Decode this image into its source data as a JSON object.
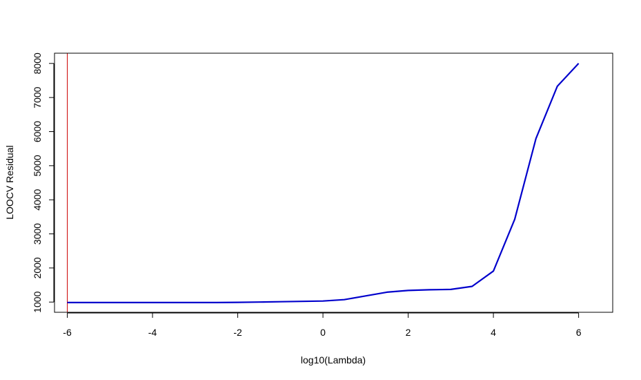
{
  "chart_data": {
    "type": "line",
    "title": "",
    "xlabel": "log10(Lambda)",
    "ylabel": "LOOCV Residual",
    "xlim": [
      -6.3,
      6.8
    ],
    "ylim": [
      700,
      8300
    ],
    "xticks": [
      -6,
      -4,
      -2,
      0,
      2,
      4,
      6
    ],
    "xtick_labels": [
      "-6",
      "-4",
      "-2",
      "0",
      "2",
      "4",
      "6"
    ],
    "yticks": [
      1000,
      2000,
      3000,
      4000,
      5000,
      6000,
      7000,
      8000
    ],
    "ytick_labels": [
      "1000",
      "2000",
      "3000",
      "4000",
      "5000",
      "6000",
      "7000",
      "8000"
    ],
    "grid": false,
    "series": [
      {
        "color": "#0000cc",
        "x": [
          -6,
          -5.5,
          -5,
          -4.5,
          -4,
          -3.5,
          -3,
          -2.5,
          -2,
          -1.5,
          -1,
          -0.5,
          0,
          0.5,
          1,
          1.5,
          2,
          2.5,
          3,
          3.5,
          4,
          4.5,
          5,
          5.5,
          6
        ],
        "y": [
          985,
          985,
          985,
          985,
          985,
          985,
          985,
          985,
          992,
          1000,
          1010,
          1020,
          1030,
          1070,
          1180,
          1290,
          1340,
          1360,
          1370,
          1460,
          1910,
          3430,
          5800,
          7330,
          8000
        ]
      }
    ],
    "vlines": [
      {
        "x": -6,
        "color": "#cc0000"
      }
    ]
  }
}
